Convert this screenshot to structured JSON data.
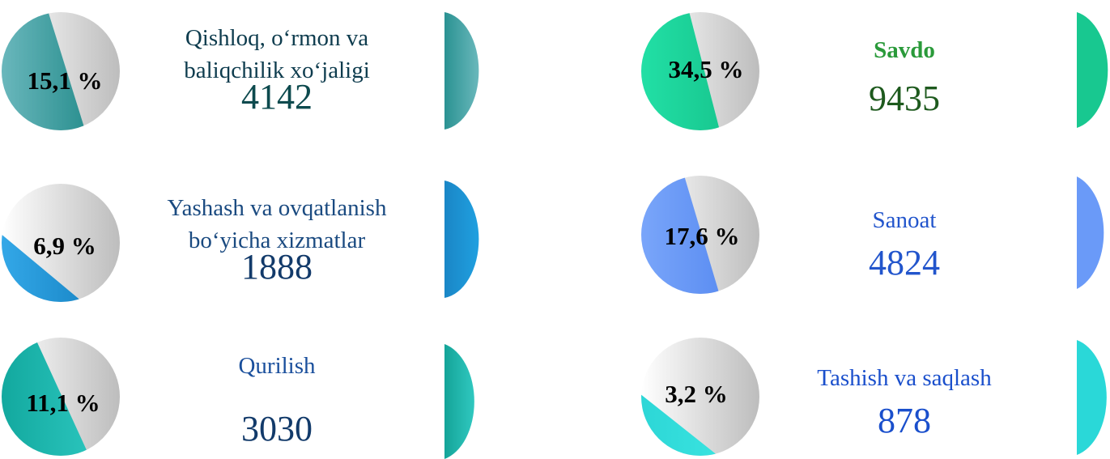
{
  "items": [
    {
      "label": "Qishloq, o‘rmon va baliqchilik xo‘jaligi",
      "label_lines": [
        "Qishloq, o‘rmon va",
        "baliqchilik xo‘jaligi"
      ],
      "percent": "15,1 %",
      "count": "4142"
    },
    {
      "label": "Yashash va ovqatlanish bo‘yicha xizmatlar",
      "label_lines": [
        "Yashash va ovqatlanish",
        "bo‘yicha xizmatlar"
      ],
      "percent": "6,9 %",
      "count": "1888"
    },
    {
      "label": "Qurilish",
      "label_lines": [
        "Qurilish"
      ],
      "percent": "11,1 %",
      "count": "3030"
    },
    {
      "label": "Savdo",
      "label_lines": [
        "Savdo"
      ],
      "percent": "34,5 %",
      "count": "9435"
    },
    {
      "label": "Sanoat",
      "label_lines": [
        "Sanoat"
      ],
      "percent": "17,6 %",
      "count": "4824"
    },
    {
      "label": "Tashish va saqlash",
      "label_lines": [
        "Tashish va saqlash"
      ],
      "percent": "3,2 %",
      "count": "878"
    }
  ]
}
